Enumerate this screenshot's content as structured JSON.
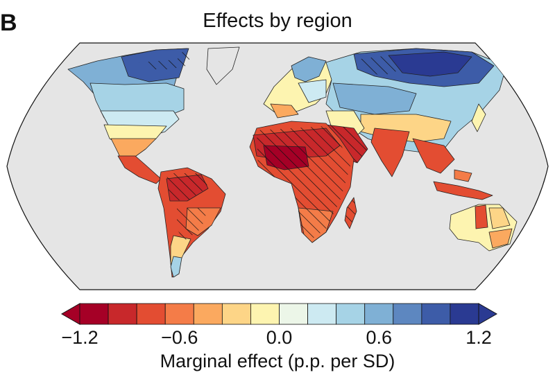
{
  "panel": {
    "letter": "B",
    "title": "Effects by region"
  },
  "colorbar": {
    "title": "Marginal effect (p.p. per SD)",
    "ticks": [
      "−1.2",
      "−0.6",
      "0.0",
      "0.6",
      "1.2"
    ],
    "tick_values": [
      -1.2,
      -0.6,
      0.0,
      0.6,
      1.2
    ],
    "range": [
      -1.2,
      1.2
    ],
    "extend": "both",
    "colors": [
      "#a50026",
      "#c8282b",
      "#e34d32",
      "#f47c48",
      "#fba95f",
      "#fdd587",
      "#fdf4b0",
      "#ecf6e8",
      "#cdeaf2",
      "#a6d3e6",
      "#7fb0d5",
      "#5d87c0",
      "#3d5ca8",
      "#2a3a92"
    ]
  },
  "map": {
    "projection": "Robinson",
    "ocean_color": "#e5e5e5",
    "hatched_regions": [
      "North Canada",
      "Siberia",
      "Sahara and Sahel",
      "Central Africa",
      "Arabian Peninsula",
      "Amazon",
      "South-central South America"
    ]
  }
}
